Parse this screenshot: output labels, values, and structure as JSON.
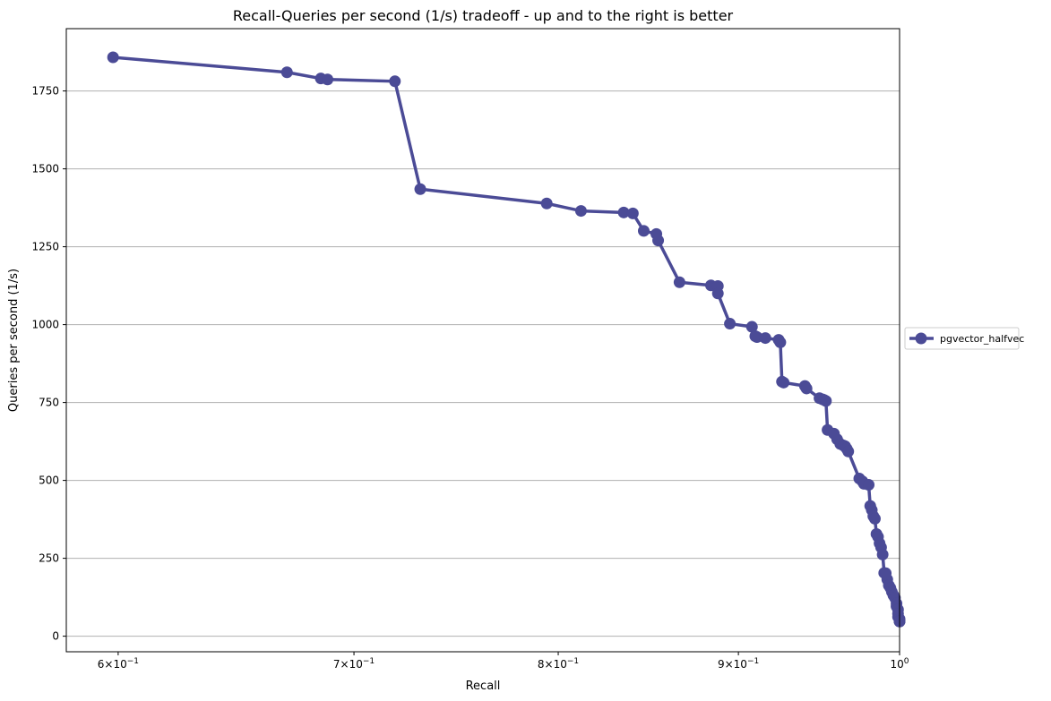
{
  "chart_data": {
    "type": "line",
    "title": "Recall-Queries per second (1/s) tradeoff - up and to the right is better",
    "xlabel": "Recall",
    "ylabel": "Queries per second (1/s)",
    "x_scale": "log",
    "xlim": [
      0.58,
      1.0
    ],
    "ylim": [
      -50,
      1950
    ],
    "grid": "y-major",
    "legend_placement": "outside-right",
    "x_ticks": [
      {
        "value": 0.6,
        "base": "6",
        "exp": "−1"
      },
      {
        "value": 0.7,
        "base": "7",
        "exp": "−1"
      },
      {
        "value": 0.8,
        "base": "8",
        "exp": "−1"
      },
      {
        "value": 0.9,
        "base": "9",
        "exp": "−1"
      },
      {
        "value": 1.0,
        "base": "10",
        "exp": "0"
      }
    ],
    "x_tick_prefix": "×",
    "y_ticks": [
      0,
      250,
      500,
      750,
      1000,
      1250,
      1500,
      1750
    ],
    "series": [
      {
        "name": "pgvector_halfvec",
        "color": "#4b4b96",
        "x": [
          0.598,
          0.67,
          0.685,
          0.688,
          0.719,
          0.731,
          0.794,
          0.812,
          0.835,
          0.84,
          0.846,
          0.853,
          0.854,
          0.866,
          0.884,
          0.888,
          0.888,
          0.895,
          0.908,
          0.91,
          0.911,
          0.916,
          0.924,
          0.925,
          0.926,
          0.927,
          0.94,
          0.941,
          0.949,
          0.951,
          0.952,
          0.953,
          0.954,
          0.958,
          0.96,
          0.962,
          0.964,
          0.965,
          0.966,
          0.967,
          0.974,
          0.976,
          0.977,
          0.98,
          0.981,
          0.982,
          0.983,
          0.984,
          0.985,
          0.986,
          0.987,
          0.988,
          0.989,
          0.99,
          0.991,
          0.992,
          0.993,
          0.994,
          0.995,
          0.996,
          0.997,
          0.998,
          0.998,
          0.999,
          0.999,
          0.999,
          1.0,
          1.0,
          1.0,
          1.0,
          1.0,
          1.0
        ],
        "y": [
          1858,
          1810,
          1790,
          1787,
          1781,
          1435,
          1389,
          1365,
          1360,
          1357,
          1301,
          1291,
          1270,
          1136,
          1126,
          1124,
          1100,
          1003,
          993,
          963,
          960,
          957,
          951,
          943,
          817,
          814,
          803,
          795,
          764,
          760,
          758,
          755,
          662,
          650,
          632,
          617,
          612,
          610,
          602,
          593,
          506,
          497,
          489,
          486,
          418,
          405,
          385,
          377,
          328,
          319,
          298,
          285,
          262,
          203,
          202,
          182,
          163,
          155,
          142,
          131,
          123,
          105,
          96,
          85,
          72,
          62,
          55,
          50,
          49,
          48,
          48,
          47
        ]
      }
    ]
  }
}
